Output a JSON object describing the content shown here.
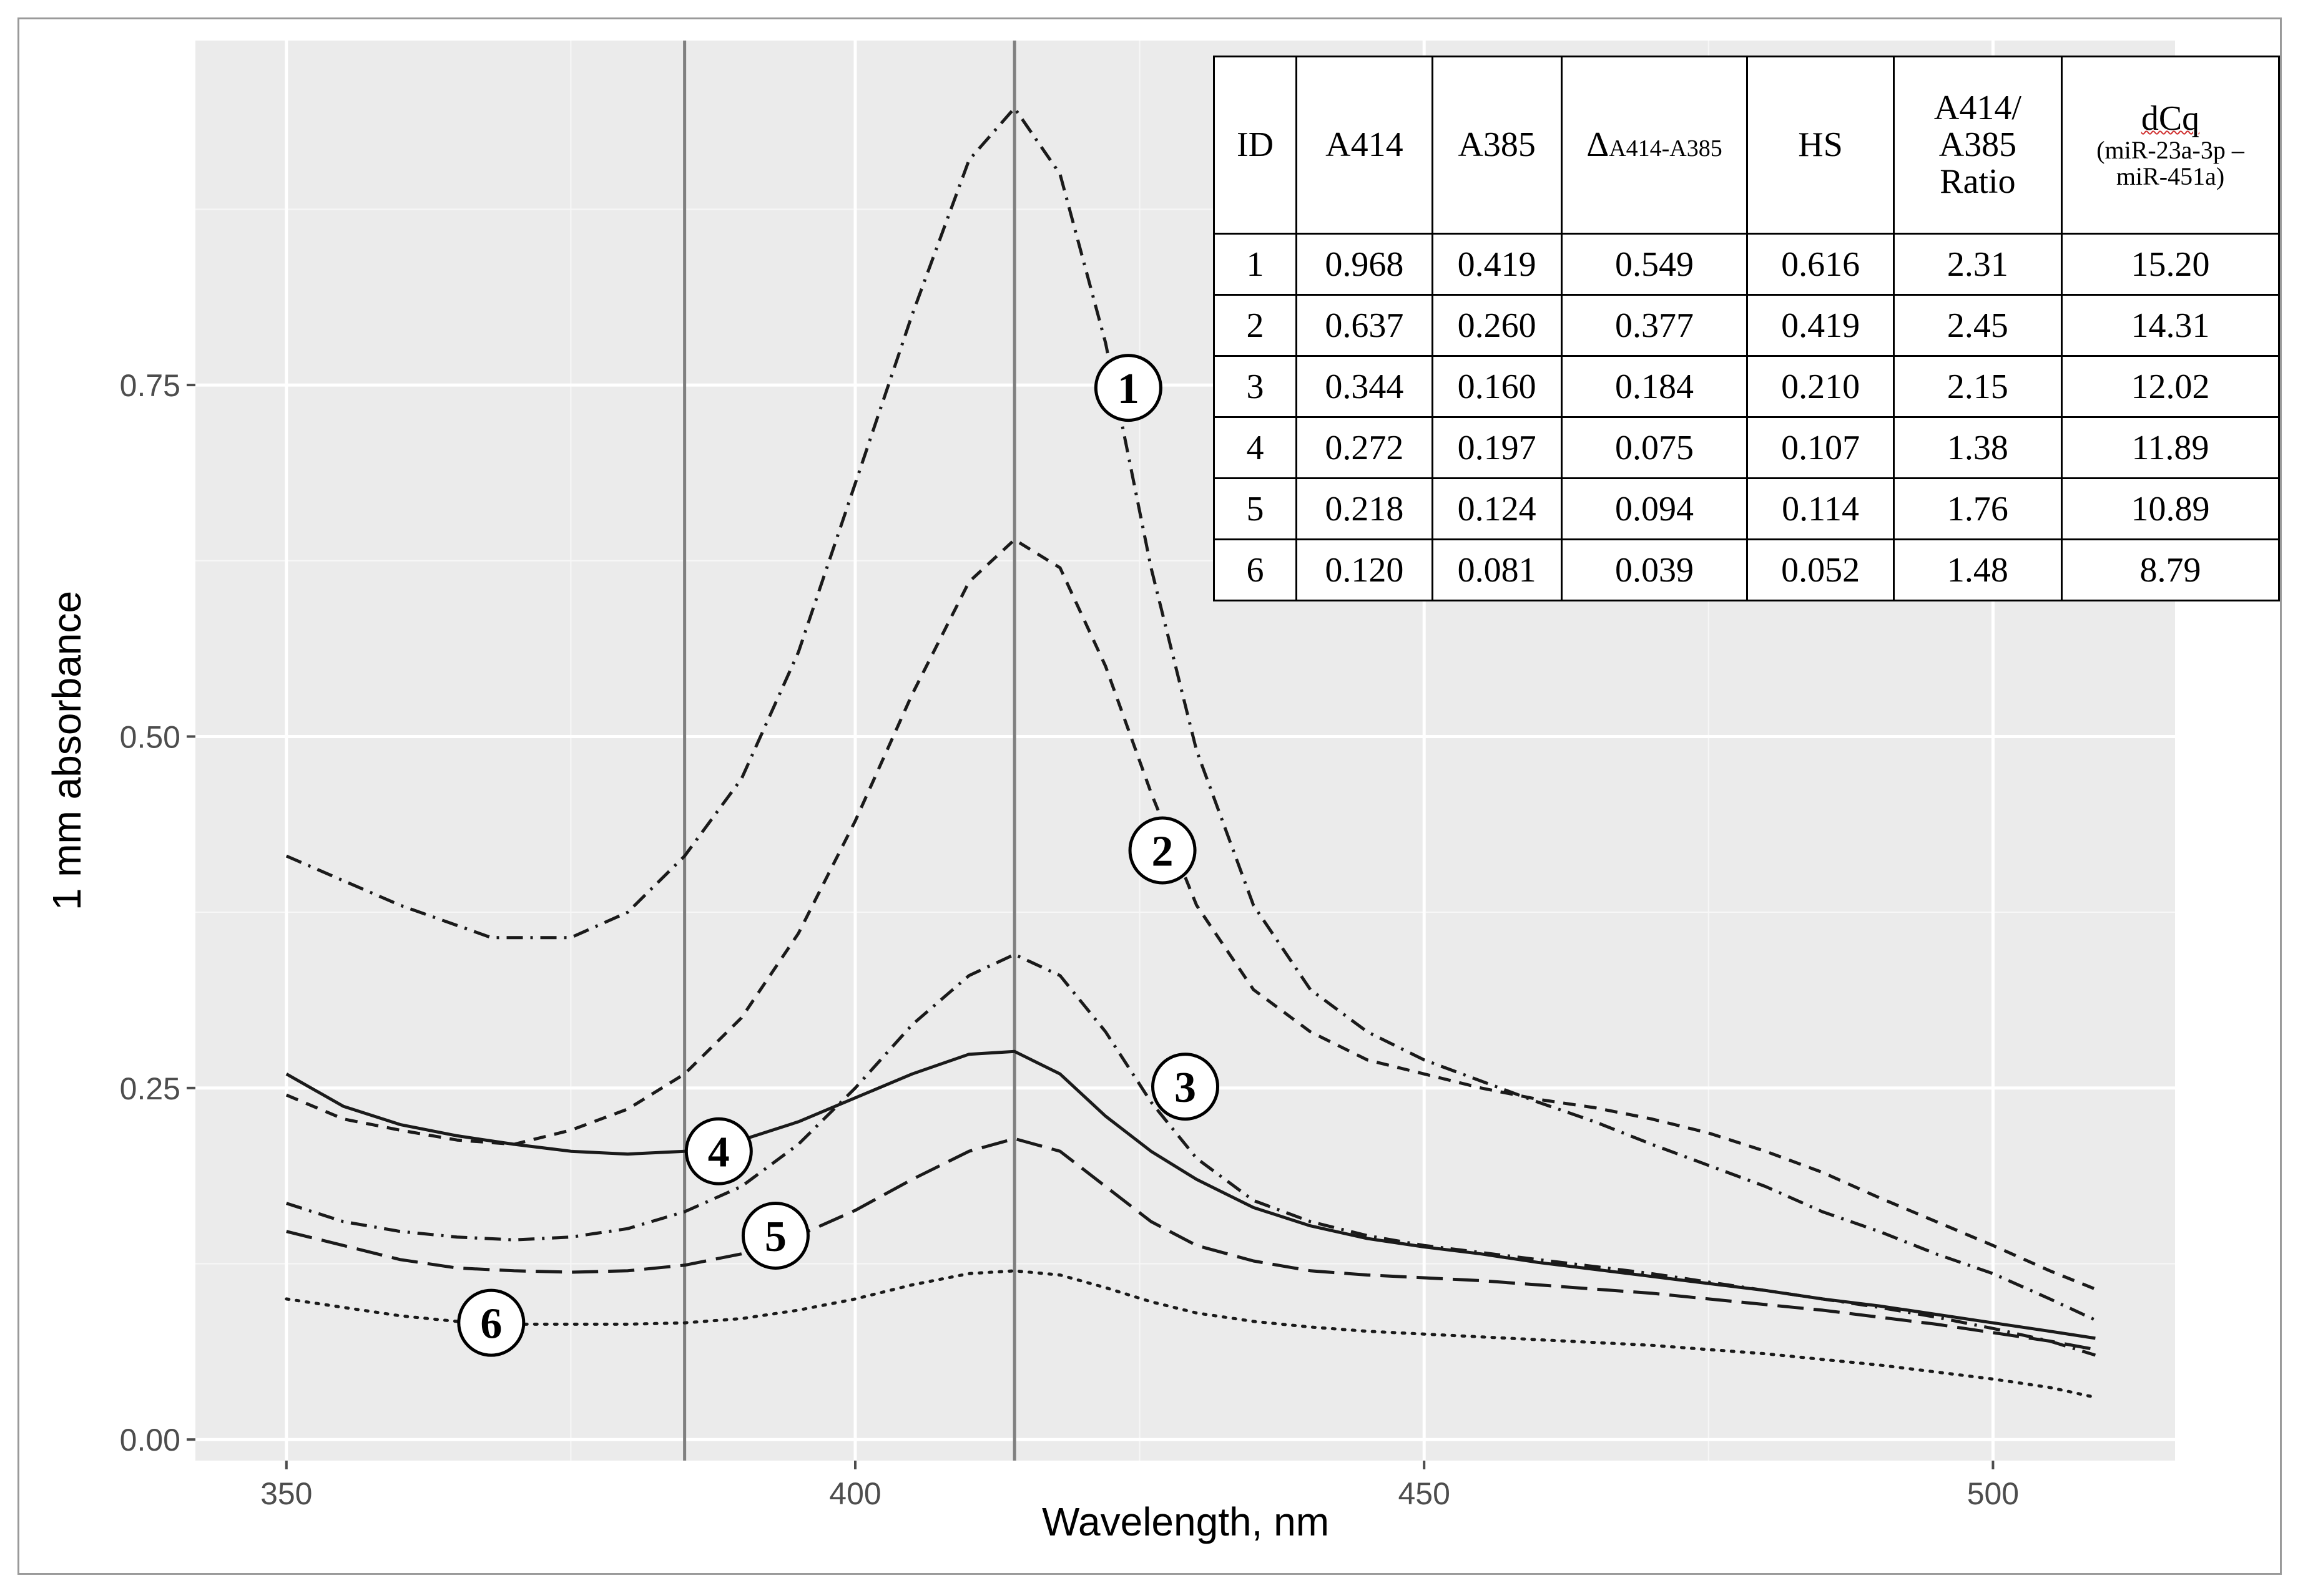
{
  "chart_data": {
    "type": "line",
    "xlabel": "Wavelength, nm",
    "ylabel": "1 mm absorbance",
    "xlim": [
      342,
      516
    ],
    "ylim": [
      -0.015,
      0.995
    ],
    "xticks": [
      350,
      400,
      450,
      500
    ],
    "xtick_labels": [
      "350",
      "400",
      "450",
      "500"
    ],
    "yticks": [
      0.0,
      0.25,
      0.5,
      0.75
    ],
    "ytick_labels": [
      "0.00",
      "0.25",
      "0.50",
      "0.75"
    ],
    "vlines": [
      385,
      414
    ],
    "grid": true,
    "series": [
      {
        "name": "1",
        "style": "dash-dot",
        "x": [
          350,
          360,
          368,
          375,
          380,
          385,
          390,
          395,
          400,
          405,
          410,
          414,
          418,
          422,
          426,
          430,
          435,
          440,
          445,
          450,
          455,
          460,
          465,
          470,
          475,
          480,
          485,
          490,
          495,
          500,
          505,
          509
        ],
        "y": [
          0.415,
          0.38,
          0.357,
          0.357,
          0.375,
          0.415,
          0.47,
          0.56,
          0.68,
          0.8,
          0.91,
          0.947,
          0.9,
          0.78,
          0.62,
          0.49,
          0.38,
          0.32,
          0.29,
          0.27,
          0.255,
          0.24,
          0.226,
          0.21,
          0.195,
          0.18,
          0.162,
          0.148,
          0.132,
          0.118,
          0.1,
          0.085
        ]
      },
      {
        "name": "2",
        "style": "dashed",
        "x": [
          350,
          355,
          360,
          365,
          370,
          375,
          380,
          385,
          390,
          395,
          400,
          405,
          410,
          414,
          418,
          422,
          426,
          430,
          435,
          440,
          445,
          450,
          455,
          460,
          465,
          470,
          475,
          480,
          485,
          490,
          495,
          500,
          505,
          509
        ],
        "y": [
          0.245,
          0.228,
          0.22,
          0.213,
          0.21,
          0.22,
          0.235,
          0.26,
          0.3,
          0.36,
          0.44,
          0.53,
          0.61,
          0.64,
          0.62,
          0.55,
          0.46,
          0.38,
          0.32,
          0.29,
          0.27,
          0.26,
          0.25,
          0.242,
          0.236,
          0.228,
          0.218,
          0.205,
          0.19,
          0.172,
          0.155,
          0.138,
          0.12,
          0.107
        ]
      },
      {
        "name": "3",
        "style": "dash-dot",
        "x": [
          350,
          355,
          360,
          365,
          370,
          375,
          380,
          385,
          390,
          395,
          400,
          405,
          410,
          414,
          418,
          422,
          426,
          430,
          435,
          440,
          445,
          450,
          455,
          460,
          465,
          470,
          475,
          480,
          485,
          490,
          495,
          500,
          505,
          509
        ],
        "y": [
          0.168,
          0.155,
          0.148,
          0.144,
          0.142,
          0.144,
          0.15,
          0.162,
          0.18,
          0.21,
          0.25,
          0.295,
          0.33,
          0.345,
          0.33,
          0.29,
          0.24,
          0.2,
          0.17,
          0.155,
          0.145,
          0.138,
          0.133,
          0.128,
          0.123,
          0.118,
          0.112,
          0.106,
          0.1,
          0.094,
          0.087,
          0.079,
          0.07,
          0.06
        ]
      },
      {
        "name": "4",
        "style": "solid",
        "x": [
          350,
          355,
          360,
          365,
          370,
          375,
          380,
          385,
          390,
          395,
          400,
          405,
          410,
          414,
          418,
          422,
          426,
          430,
          435,
          440,
          445,
          450,
          455,
          460,
          465,
          470,
          475,
          480,
          485,
          490,
          495,
          500,
          505,
          509
        ],
        "y": [
          0.26,
          0.237,
          0.224,
          0.216,
          0.21,
          0.205,
          0.203,
          0.205,
          0.213,
          0.226,
          0.243,
          0.26,
          0.274,
          0.276,
          0.26,
          0.23,
          0.205,
          0.185,
          0.165,
          0.152,
          0.143,
          0.137,
          0.132,
          0.126,
          0.121,
          0.116,
          0.111,
          0.106,
          0.1,
          0.095,
          0.089,
          0.083,
          0.077,
          0.072
        ]
      },
      {
        "name": "5",
        "style": "long-dash",
        "x": [
          350,
          355,
          360,
          365,
          370,
          375,
          380,
          385,
          390,
          395,
          400,
          405,
          410,
          414,
          418,
          422,
          426,
          430,
          435,
          440,
          445,
          450,
          455,
          460,
          465,
          470,
          475,
          480,
          485,
          490,
          495,
          500,
          505,
          509
        ],
        "y": [
          0.148,
          0.138,
          0.128,
          0.122,
          0.12,
          0.119,
          0.12,
          0.124,
          0.132,
          0.145,
          0.163,
          0.185,
          0.205,
          0.214,
          0.205,
          0.18,
          0.155,
          0.138,
          0.127,
          0.12,
          0.117,
          0.115,
          0.113,
          0.11,
          0.107,
          0.104,
          0.1,
          0.096,
          0.092,
          0.087,
          0.082,
          0.076,
          0.07,
          0.064
        ]
      },
      {
        "name": "6",
        "style": "dotted",
        "x": [
          350,
          355,
          360,
          365,
          370,
          375,
          380,
          385,
          390,
          395,
          400,
          405,
          410,
          414,
          418,
          422,
          426,
          430,
          435,
          440,
          445,
          450,
          455,
          460,
          465,
          470,
          475,
          480,
          485,
          490,
          495,
          500,
          505,
          509
        ],
        "y": [
          0.1,
          0.094,
          0.088,
          0.084,
          0.082,
          0.082,
          0.082,
          0.083,
          0.086,
          0.092,
          0.1,
          0.11,
          0.118,
          0.12,
          0.117,
          0.108,
          0.098,
          0.09,
          0.084,
          0.08,
          0.077,
          0.075,
          0.073,
          0.071,
          0.069,
          0.067,
          0.064,
          0.061,
          0.057,
          0.053,
          0.048,
          0.043,
          0.037,
          0.03
        ]
      }
    ],
    "annotations": [
      {
        "label": "1",
        "x": 424,
        "y": 0.748
      },
      {
        "label": "2",
        "x": 427,
        "y": 0.419
      },
      {
        "label": "3",
        "x": 429,
        "y": 0.251
      },
      {
        "label": "4",
        "x": 388,
        "y": 0.205
      },
      {
        "label": "5",
        "x": 393,
        "y": 0.145
      },
      {
        "label": "6",
        "x": 368,
        "y": 0.083
      }
    ]
  },
  "table": {
    "headers": [
      "ID",
      "A414",
      "A385",
      "A414-A385",
      "HS",
      "A414/",
      "A385",
      "Ratio",
      "dCq",
      "(miR-23a-3p –",
      "miR-451a)"
    ],
    "delta_symbol": "Δ",
    "rows": [
      [
        "1",
        "0.968",
        "0.419",
        "0.549",
        "0.616",
        "2.31",
        "15.20"
      ],
      [
        "2",
        "0.637",
        "0.260",
        "0.377",
        "0.419",
        "2.45",
        "14.31"
      ],
      [
        "3",
        "0.344",
        "0.160",
        "0.184",
        "0.210",
        "2.15",
        "12.02"
      ],
      [
        "4",
        "0.272",
        "0.197",
        "0.075",
        "0.107",
        "1.38",
        "11.89"
      ],
      [
        "5",
        "0.218",
        "0.124",
        "0.094",
        "0.114",
        "1.76",
        "10.89"
      ],
      [
        "6",
        "0.120",
        "0.081",
        "0.039",
        "0.052",
        "1.48",
        "8.79"
      ]
    ]
  }
}
